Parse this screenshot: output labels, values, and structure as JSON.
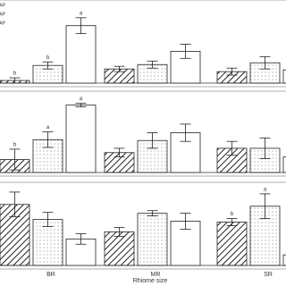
{
  "chart_data": [
    {
      "type": "bar",
      "ylim": [
        0,
        90
      ],
      "series": [
        {
          "name": "MAP",
          "pattern": "hatch",
          "values": [
            3,
            16,
            13
          ],
          "errors": [
            3,
            3,
            4
          ],
          "letters": [
            "b",
            null,
            null
          ]
        },
        {
          "name": "MAP",
          "pattern": "dots",
          "values": [
            20,
            21,
            23
          ],
          "errors": [
            4,
            4,
            7
          ],
          "letters": [
            "b",
            null,
            null
          ]
        },
        {
          "name": "MAP",
          "pattern": "plain",
          "values": [
            65,
            36,
            15
          ],
          "errors": [
            9,
            8,
            5
          ],
          "letters": [
            "a",
            null,
            null
          ]
        }
      ]
    },
    {
      "type": "bar",
      "ylim": [
        0,
        90
      ],
      "series": [
        {
          "pattern": "hatch",
          "values": [
            15,
            23,
            28
          ],
          "errors": [
            12,
            5,
            8
          ],
          "letters": [
            "b",
            null,
            null
          ]
        },
        {
          "pattern": "dots",
          "values": [
            38,
            37,
            28
          ],
          "errors": [
            9,
            9,
            12
          ],
          "letters": [
            "a",
            null,
            null
          ]
        },
        {
          "pattern": "plain",
          "values": [
            78,
            46,
            18
          ],
          "errors": [
            2,
            10,
            6
          ],
          "letters": [
            "a",
            null,
            null
          ]
        }
      ]
    },
    {
      "type": "bar",
      "ylim": [
        0,
        90
      ],
      "xlabel": "Rhiome size",
      "categories": [
        "BR",
        "MR",
        "SR"
      ],
      "series": [
        {
          "pattern": "hatch",
          "values": [
            69,
            38,
            49
          ],
          "errors": [
            14,
            5,
            4
          ],
          "letters": [
            null,
            null,
            "b"
          ]
        },
        {
          "pattern": "dots",
          "values": [
            52,
            59,
            67
          ],
          "errors": [
            8,
            3,
            14
          ],
          "letters": [
            null,
            null,
            "a"
          ]
        },
        {
          "pattern": "plain",
          "values": [
            30,
            50,
            12
          ],
          "errors": [
            6,
            9,
            4
          ],
          "letters": [
            null,
            null,
            null
          ]
        }
      ]
    }
  ]
}
